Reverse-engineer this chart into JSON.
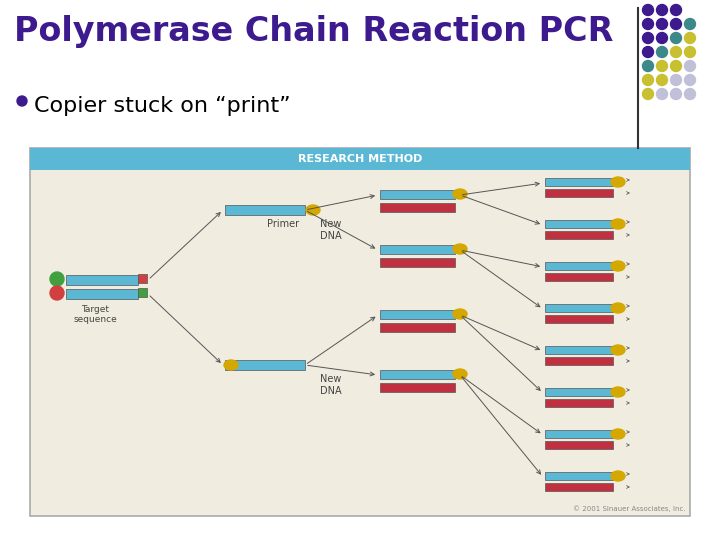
{
  "title": "Polymerase Chain Reaction PCR",
  "bullet": "Copier stuck on “print”",
  "bg_color": "#ffffff",
  "title_color": "#3d1a8e",
  "bullet_color": "#000000",
  "pcr_image_header_color": "#5ab8d4",
  "pcr_image_header_text": "RESEARCH METHOD",
  "pcr_image_bg": "#f0ece0",
  "copyright_text": "© 2001 Sinauer Associates, Inc.",
  "divider_color": "#888888",
  "BLUE": "#5ab8d4",
  "RED": "#c03040",
  "YELLOW": "#d4a800",
  "GREEN": "#40a040",
  "PINK": "#d04040",
  "dot_rows": [
    [
      "#3d1a8e",
      "#3d1a8e",
      "#3d1a8e"
    ],
    [
      "#3d1a8e",
      "#3d1a8e",
      "#3d1a8e",
      "#3d8888"
    ],
    [
      "#3d1a8e",
      "#3d1a8e",
      "#3d8888",
      "#c8c030"
    ],
    [
      "#3d1a8e",
      "#3d8888",
      "#c8c030",
      "#c8c030"
    ],
    [
      "#3d8888",
      "#c8c030",
      "#c8c030",
      "#c0c0d8"
    ],
    [
      "#c8c030",
      "#c8c030",
      "#c0c0d8",
      "#c0c0d8"
    ],
    [
      "#c8c030",
      "#c0c0d8",
      "#c0c0d8",
      "#c0c0d8"
    ]
  ]
}
